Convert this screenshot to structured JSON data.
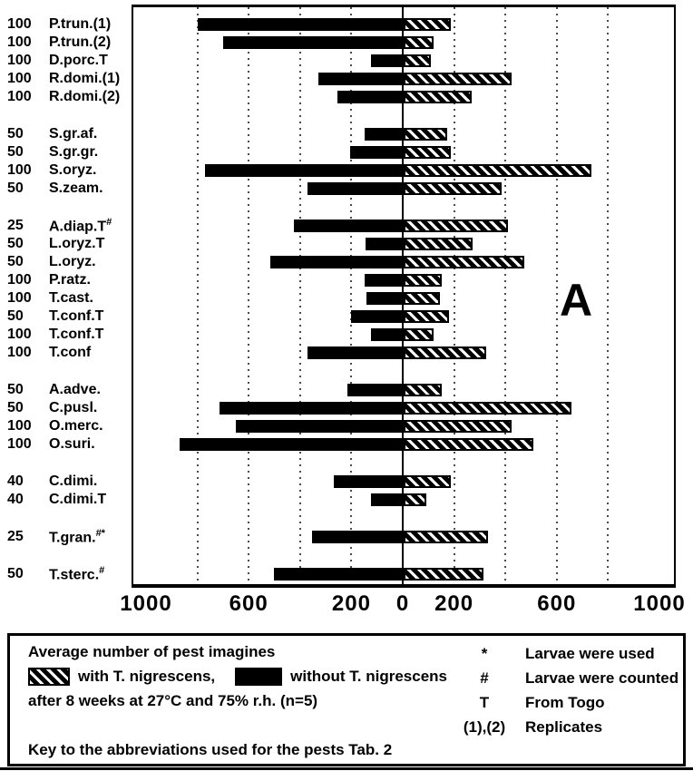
{
  "chart_data": {
    "type": "bar",
    "orientation": "diverging-horizontal",
    "panel_label": "A",
    "axis": {
      "tick_labels": [
        "1000",
        "600",
        "200",
        "0",
        "200",
        "600",
        "1000"
      ],
      "tick_values": [
        -1000,
        -600,
        -200,
        0,
        200,
        600,
        1000
      ],
      "xlim": [
        -1000,
        1000
      ],
      "gridline_step": 200,
      "grid_style": "dotted-vertical",
      "zero_line": "solid"
    },
    "series": [
      {
        "name": "without T. nigrescens",
        "side": "left",
        "style": "solid-black"
      },
      {
        "name": "with T. nigrescens",
        "side": "right",
        "style": "hatched"
      }
    ],
    "groups": [
      [
        {
          "n": "100",
          "pest": "P.trun.(1)",
          "sup": "",
          "without": 800,
          "with": 185
        },
        {
          "n": "100",
          "pest": "P.trun.(2)",
          "sup": "",
          "without": 700,
          "with": 115
        },
        {
          "n": "100",
          "pest": "D.porc.T",
          "sup": "",
          "without": 125,
          "with": 105
        },
        {
          "n": "100",
          "pest": "R.domi.(1)",
          "sup": "",
          "without": 330,
          "with": 420
        },
        {
          "n": "100",
          "pest": "R.domi.(2)",
          "sup": "",
          "without": 255,
          "with": 265
        }
      ],
      [
        {
          "n": "50",
          "pest": "S.gr.af.",
          "sup": "",
          "without": 150,
          "with": 170
        },
        {
          "n": "50",
          "pest": "S.gr.gr.",
          "sup": "",
          "without": 205,
          "with": 185
        },
        {
          "n": "100",
          "pest": "S.oryz.",
          "sup": "",
          "without": 770,
          "with": 730
        },
        {
          "n": "50",
          "pest": "S.zeam.",
          "sup": "",
          "without": 370,
          "with": 380
        }
      ],
      [
        {
          "n": "25",
          "pest": "A.diap.T",
          "sup": "#",
          "without": 425,
          "with": 405
        },
        {
          "n": "50",
          "pest": "L.oryz.T",
          "sup": "",
          "without": 145,
          "with": 270
        },
        {
          "n": "50",
          "pest": "L.oryz.",
          "sup": "",
          "without": 515,
          "with": 470
        },
        {
          "n": "100",
          "pest": "P.ratz.",
          "sup": "",
          "without": 150,
          "with": 150
        },
        {
          "n": "100",
          "pest": "T.cast.",
          "sup": "",
          "without": 140,
          "with": 140
        },
        {
          "n": "50",
          "pest": "T.conf.T",
          "sup": "",
          "without": 200,
          "with": 175
        },
        {
          "n": "100",
          "pest": "T.conf.T",
          "sup": "",
          "without": 125,
          "with": 115
        },
        {
          "n": "100",
          "pest": "T.conf",
          "sup": "",
          "without": 370,
          "with": 320
        }
      ],
      [
        {
          "n": "50",
          "pest": "A.adve.",
          "sup": "",
          "without": 215,
          "with": 150
        },
        {
          "n": "50",
          "pest": "C.pusl.",
          "sup": "",
          "without": 715,
          "with": 655
        },
        {
          "n": "100",
          "pest": "O.merc.",
          "sup": "",
          "without": 650,
          "with": 420
        },
        {
          "n": "100",
          "pest": "O.suri.",
          "sup": "",
          "without": 870,
          "with": 505
        }
      ],
      [
        {
          "n": "40",
          "pest": "C.dimi.",
          "sup": "",
          "without": 270,
          "with": 185
        },
        {
          "n": "40",
          "pest": "C.dimi.T",
          "sup": "",
          "without": 125,
          "with": 90
        }
      ],
      [
        {
          "n": "25",
          "pest": "T.gran.",
          "sup": "#*",
          "without": 355,
          "with": 330
        }
      ],
      [
        {
          "n": "50",
          "pest": "T.sterc.",
          "sup": "#",
          "without": 500,
          "with": 310
        }
      ]
    ]
  },
  "legend": {
    "title": "Average number of pest imagines",
    "with_label": "with T. nigrescens,",
    "without_label": "without T. nigrescens",
    "conditions": "after 8 weeks at 27°C and 75% r.h. (n=5)",
    "key_line": "Key to the abbreviations used for the pests Tab. 2",
    "symbols": [
      {
        "symbol": "*",
        "meaning": "Larvae were used"
      },
      {
        "symbol": "#",
        "meaning": "Larvae were counted"
      },
      {
        "symbol": "T",
        "meaning": "From Togo"
      },
      {
        "symbol": "(1),(2)",
        "meaning": "Replicates"
      }
    ]
  },
  "colors": {
    "bar_without": "#000000",
    "hatch_stripes": "#000000",
    "background": "#ffffff",
    "axis": "#000000"
  }
}
